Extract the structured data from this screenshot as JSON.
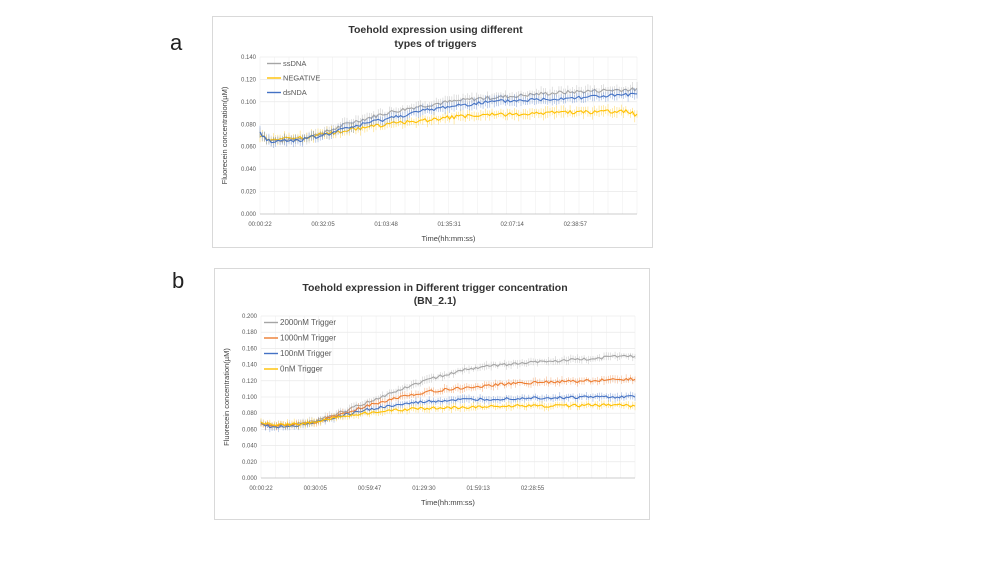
{
  "panels": [
    {
      "letter": "a"
    },
    {
      "letter": "b"
    }
  ],
  "chart_data": [
    {
      "type": "line",
      "title": [
        "Toehold expression using different",
        "types of triggers"
      ],
      "xlabel": "Time(hh:mm:ss)",
      "ylabel": "Fluorecein concentration(µM)",
      "ylim": [
        0,
        0.14
      ],
      "yticks": [
        "0.000",
        "0.020",
        "0.040",
        "0.060",
        "0.080",
        "0.100",
        "0.120",
        "0.140"
      ],
      "xrange_s": [
        22,
        11400
      ],
      "xticks": [
        "00:00:22",
        "00:32:05",
        "01:03:48",
        "01:35:31",
        "02:07:14",
        "02:38:57"
      ],
      "grid": true,
      "legend_position": "top-left",
      "error_bars": true,
      "series": [
        {
          "name": "ssDNA",
          "color": "#a5a5a5",
          "x": [
            "00:00:22",
            "00:05:00",
            "00:10:00",
            "00:20:00",
            "00:32:05",
            "00:45:00",
            "01:03:48",
            "01:20:00",
            "01:35:31",
            "01:50:00",
            "02:07:14",
            "02:20:00",
            "02:38:57",
            "02:50:00",
            "03:05:00",
            "03:10:00"
          ],
          "values": [
            0.073,
            0.066,
            0.065,
            0.067,
            0.072,
            0.081,
            0.09,
            0.096,
            0.1,
            0.103,
            0.105,
            0.107,
            0.109,
            0.11,
            0.111,
            0.111
          ]
        },
        {
          "name": "NEGATIVE",
          "color": "#ffc000",
          "x": [
            "00:00:22",
            "00:05:00",
            "00:10:00",
            "00:20:00",
            "00:32:05",
            "00:45:00",
            "01:03:48",
            "01:20:00",
            "01:35:31",
            "01:50:00",
            "02:07:14",
            "02:20:00",
            "02:38:57",
            "02:50:00",
            "03:05:00",
            "03:10:00"
          ],
          "values": [
            0.07,
            0.067,
            0.067,
            0.068,
            0.071,
            0.075,
            0.08,
            0.083,
            0.086,
            0.088,
            0.089,
            0.09,
            0.091,
            0.091,
            0.092,
            0.088
          ]
        },
        {
          "name": "dsNDA",
          "color": "#4472c4",
          "x": [
            "00:00:22",
            "00:05:00",
            "00:10:00",
            "00:20:00",
            "00:32:05",
            "00:45:00",
            "01:03:48",
            "01:20:00",
            "01:35:31",
            "01:50:00",
            "02:07:14",
            "02:20:00",
            "02:38:57",
            "02:50:00",
            "03:05:00",
            "03:10:00"
          ],
          "values": [
            0.072,
            0.065,
            0.065,
            0.066,
            0.07,
            0.077,
            0.085,
            0.091,
            0.096,
            0.099,
            0.101,
            0.102,
            0.104,
            0.105,
            0.106,
            0.106
          ]
        }
      ]
    },
    {
      "type": "line",
      "title": [
        "Toehold expression in Different trigger concentration",
        "(BN_2.1)"
      ],
      "xlabel": "Time(hh:mm:ss)",
      "ylabel": "Fluorecein concentration(µM)",
      "ylim": [
        0,
        0.2
      ],
      "yticks": [
        "0.000",
        "0.020",
        "0.040",
        "0.060",
        "0.080",
        "0.100",
        "0.120",
        "0.140",
        "0.160",
        "0.180",
        "0.200"
      ],
      "xrange_s": [
        22,
        12300
      ],
      "xticks": [
        "00:00:22",
        "00:30:05",
        "00:59:47",
        "01:29:30",
        "01:59:13",
        "02:28:55"
      ],
      "grid": true,
      "legend_position": "top-left",
      "error_bars": true,
      "series": [
        {
          "name": "2000nM Trigger",
          "color": "#a5a5a5",
          "x": [
            "00:00:22",
            "00:05:00",
            "00:15:00",
            "00:30:05",
            "00:45:00",
            "00:59:47",
            "01:15:00",
            "01:29:30",
            "01:45:00",
            "01:59:13",
            "02:15:00",
            "02:28:55",
            "02:45:00",
            "03:00:00",
            "03:15:00",
            "03:25:00"
          ],
          "values": [
            0.068,
            0.064,
            0.065,
            0.07,
            0.082,
            0.095,
            0.108,
            0.12,
            0.13,
            0.137,
            0.14,
            0.143,
            0.145,
            0.147,
            0.15,
            0.15
          ]
        },
        {
          "name": "1000nM Trigger",
          "color": "#ed7d31",
          "x": [
            "00:00:22",
            "00:05:00",
            "00:15:00",
            "00:30:05",
            "00:45:00",
            "00:59:47",
            "01:15:00",
            "01:29:30",
            "01:45:00",
            "01:59:13",
            "02:15:00",
            "02:28:55",
            "02:45:00",
            "03:00:00",
            "03:15:00",
            "03:25:00"
          ],
          "values": [
            0.068,
            0.064,
            0.065,
            0.069,
            0.079,
            0.09,
            0.099,
            0.106,
            0.11,
            0.113,
            0.116,
            0.118,
            0.119,
            0.12,
            0.122,
            0.122
          ]
        },
        {
          "name": "100nM Trigger",
          "color": "#4472c4",
          "x": [
            "00:00:22",
            "00:05:00",
            "00:15:00",
            "00:30:05",
            "00:45:00",
            "00:59:47",
            "01:15:00",
            "01:29:30",
            "01:45:00",
            "01:59:13",
            "02:15:00",
            "02:28:55",
            "02:45:00",
            "03:00:00",
            "03:15:00",
            "03:25:00"
          ],
          "values": [
            0.067,
            0.063,
            0.064,
            0.068,
            0.077,
            0.085,
            0.09,
            0.094,
            0.096,
            0.097,
            0.098,
            0.099,
            0.099,
            0.1,
            0.1,
            0.1
          ]
        },
        {
          "name": "0nM Trigger",
          "color": "#ffc000",
          "x": [
            "00:00:22",
            "00:05:00",
            "00:15:00",
            "00:30:05",
            "00:45:00",
            "00:59:47",
            "01:15:00",
            "01:29:30",
            "01:45:00",
            "01:59:13",
            "02:15:00",
            "02:28:55",
            "02:45:00",
            "03:00:00",
            "03:15:00",
            "03:25:00"
          ],
          "values": [
            0.069,
            0.066,
            0.066,
            0.069,
            0.076,
            0.081,
            0.084,
            0.086,
            0.087,
            0.088,
            0.089,
            0.089,
            0.089,
            0.09,
            0.09,
            0.089
          ]
        }
      ]
    }
  ]
}
